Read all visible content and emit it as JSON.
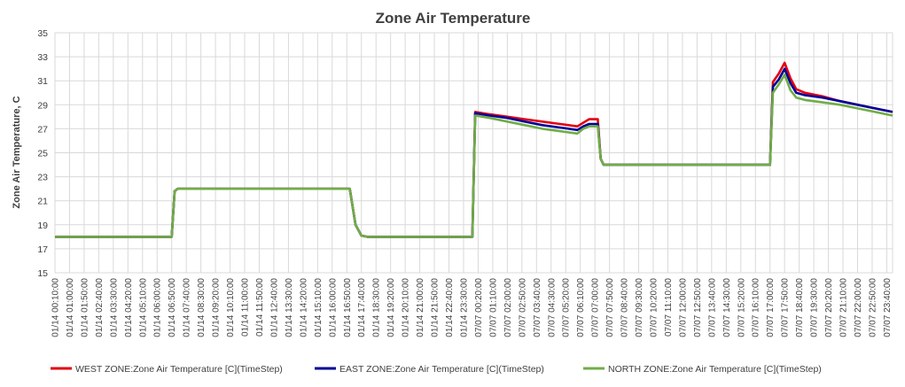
{
  "chart_data": {
    "type": "line",
    "title": "Zone Air Temperature",
    "ylabel": "Zone Air Temperature, C",
    "xlabel": "",
    "ylim": [
      15,
      35
    ],
    "yticks": [
      15,
      17,
      19,
      21,
      23,
      25,
      27,
      29,
      31,
      33,
      35
    ],
    "grid": "vertical and horizontal",
    "legend_position": "bottom",
    "x_tick_labels": [
      "01/14 00:10:00",
      "01/14 01:00:00",
      "01/14 01:50:00",
      "01/14 02:40:00",
      "01/14 03:30:00",
      "01/14 04:20:00",
      "01/14 05:10:00",
      "01/14 06:00:00",
      "01/14 06:50:00",
      "01/14 07:40:00",
      "01/14 08:30:00",
      "01/14 09:20:00",
      "01/14 10:10:00",
      "01/14 11:00:00",
      "01/14 11:50:00",
      "01/14 12:40:00",
      "01/14 13:30:00",
      "01/14 14:20:00",
      "01/14 15:10:00",
      "01/14 16:00:00",
      "01/14 16:50:00",
      "01/14 17:40:00",
      "01/14 18:30:00",
      "01/14 19:20:00",
      "01/14 20:10:00",
      "01/14 21:00:00",
      "01/14 21:50:00",
      "01/14 22:40:00",
      "01/14 23:30:00",
      "07/07 00:20:00",
      "07/07 01:10:00",
      "07/07 02:00:00",
      "07/07 02:50:00",
      "07/07 03:40:00",
      "07/07 04:30:00",
      "07/07 05:20:00",
      "07/07 06:10:00",
      "07/07 07:00:00",
      "07/07 07:50:00",
      "07/07 08:40:00",
      "07/07 09:30:00",
      "07/07 10:20:00",
      "07/07 11:10:00",
      "07/07 12:00:00",
      "07/07 12:50:00",
      "07/07 13:40:00",
      "07/07 14:30:00",
      "07/07 15:20:00",
      "07/07 16:10:00",
      "07/07 17:00:00",
      "07/07 17:50:00",
      "07/07 18:40:00",
      "07/07 19:30:00",
      "07/07 20:20:00",
      "07/07 21:10:00",
      "07/07 22:00:00",
      "07/07 22:50:00",
      "07/07 23:40:00"
    ],
    "x_range": [
      "01/14 00:10:00",
      "07/07 24:00:00"
    ],
    "series": [
      {
        "name": "WEST ZONE:Zone Air Temperature [C](TimeStep)",
        "color": "#e3000f",
        "points": [
          [
            "01/14 00:10:00",
            18.0
          ],
          [
            "01/14 06:50:00",
            18.0
          ],
          [
            "01/14 07:00:00",
            21.8
          ],
          [
            "01/14 07:10:00",
            22.0
          ],
          [
            "01/14 17:00:00",
            22.0
          ],
          [
            "01/14 17:20:00",
            19.0
          ],
          [
            "01/14 17:40:00",
            18.1
          ],
          [
            "01/14 18:00:00",
            18.0
          ],
          [
            "01/14 24:00:00",
            18.0
          ],
          [
            "07/07 00:10:00",
            28.4
          ],
          [
            "07/07 01:00:00",
            28.2
          ],
          [
            "07/07 02:00:00",
            28.0
          ],
          [
            "07/07 03:00:00",
            27.8
          ],
          [
            "07/07 04:00:00",
            27.6
          ],
          [
            "07/07 05:00:00",
            27.4
          ],
          [
            "07/07 06:00:00",
            27.2
          ],
          [
            "07/07 06:20:00",
            27.5
          ],
          [
            "07/07 06:40:00",
            27.8
          ],
          [
            "07/07 07:10:00",
            27.8
          ],
          [
            "07/07 07:20:00",
            24.5
          ],
          [
            "07/07 07:30:00",
            24.0
          ],
          [
            "07/07 17:00:00",
            24.0
          ],
          [
            "07/07 17:10:00",
            30.9
          ],
          [
            "07/07 17:30:00",
            31.6
          ],
          [
            "07/07 17:50:00",
            32.5
          ],
          [
            "07/07 18:10:00",
            31.2
          ],
          [
            "07/07 18:30:00",
            30.3
          ],
          [
            "07/07 19:00:00",
            30.0
          ],
          [
            "07/07 20:00:00",
            29.7
          ],
          [
            "07/07 21:00:00",
            29.3
          ],
          [
            "07/07 22:00:00",
            29.0
          ],
          [
            "07/07 23:00:00",
            28.7
          ],
          [
            "07/07 24:00:00",
            28.4
          ]
        ]
      },
      {
        "name": "EAST ZONE:Zone Air Temperature [C](TimeStep)",
        "color": "#000099",
        "points": [
          [
            "01/14 00:10:00",
            18.0
          ],
          [
            "01/14 06:50:00",
            18.0
          ],
          [
            "01/14 07:00:00",
            21.8
          ],
          [
            "01/14 07:10:00",
            22.0
          ],
          [
            "01/14 17:00:00",
            22.0
          ],
          [
            "01/14 17:20:00",
            19.0
          ],
          [
            "01/14 17:40:00",
            18.1
          ],
          [
            "01/14 18:00:00",
            18.0
          ],
          [
            "01/14 24:00:00",
            18.0
          ],
          [
            "07/07 00:10:00",
            28.3
          ],
          [
            "07/07 01:00:00",
            28.1
          ],
          [
            "07/07 02:00:00",
            27.9
          ],
          [
            "07/07 03:00:00",
            27.6
          ],
          [
            "07/07 04:00:00",
            27.3
          ],
          [
            "07/07 05:00:00",
            27.1
          ],
          [
            "07/07 06:00:00",
            26.9
          ],
          [
            "07/07 06:20:00",
            27.2
          ],
          [
            "07/07 06:40:00",
            27.4
          ],
          [
            "07/07 07:10:00",
            27.4
          ],
          [
            "07/07 07:20:00",
            24.5
          ],
          [
            "07/07 07:30:00",
            24.0
          ],
          [
            "07/07 17:00:00",
            24.0
          ],
          [
            "07/07 17:10:00",
            30.5
          ],
          [
            "07/07 17:30:00",
            31.1
          ],
          [
            "07/07 17:50:00",
            32.0
          ],
          [
            "07/07 18:10:00",
            30.8
          ],
          [
            "07/07 18:30:00",
            30.0
          ],
          [
            "07/07 19:00:00",
            29.8
          ],
          [
            "07/07 20:00:00",
            29.6
          ],
          [
            "07/07 21:00:00",
            29.3
          ],
          [
            "07/07 22:00:00",
            29.0
          ],
          [
            "07/07 23:00:00",
            28.7
          ],
          [
            "07/07 24:00:00",
            28.4
          ]
        ]
      },
      {
        "name": "NORTH ZONE:Zone Air Temperature [C](TimeStep)",
        "color": "#70ad47",
        "points": [
          [
            "01/14 00:10:00",
            18.0
          ],
          [
            "01/14 06:50:00",
            18.0
          ],
          [
            "01/14 07:00:00",
            21.8
          ],
          [
            "01/14 07:10:00",
            22.0
          ],
          [
            "01/14 17:00:00",
            22.0
          ],
          [
            "01/14 17:20:00",
            19.0
          ],
          [
            "01/14 17:40:00",
            18.1
          ],
          [
            "01/14 18:00:00",
            18.0
          ],
          [
            "01/14 24:00:00",
            18.0
          ],
          [
            "07/07 00:10:00",
            28.1
          ],
          [
            "07/07 01:00:00",
            27.9
          ],
          [
            "07/07 02:00:00",
            27.6
          ],
          [
            "07/07 03:00:00",
            27.3
          ],
          [
            "07/07 04:00:00",
            27.0
          ],
          [
            "07/07 05:00:00",
            26.8
          ],
          [
            "07/07 06:00:00",
            26.6
          ],
          [
            "07/07 06:20:00",
            27.0
          ],
          [
            "07/07 06:40:00",
            27.2
          ],
          [
            "07/07 07:10:00",
            27.2
          ],
          [
            "07/07 07:20:00",
            24.5
          ],
          [
            "07/07 07:30:00",
            24.0
          ],
          [
            "07/07 17:00:00",
            24.0
          ],
          [
            "07/07 17:10:00",
            30.0
          ],
          [
            "07/07 17:30:00",
            30.7
          ],
          [
            "07/07 17:50:00",
            31.5
          ],
          [
            "07/07 18:10:00",
            30.2
          ],
          [
            "07/07 18:30:00",
            29.6
          ],
          [
            "07/07 19:00:00",
            29.4
          ],
          [
            "07/07 20:00:00",
            29.2
          ],
          [
            "07/07 21:00:00",
            29.0
          ],
          [
            "07/07 22:00:00",
            28.7
          ],
          [
            "07/07 23:00:00",
            28.4
          ],
          [
            "07/07 24:00:00",
            28.1
          ]
        ]
      }
    ]
  }
}
